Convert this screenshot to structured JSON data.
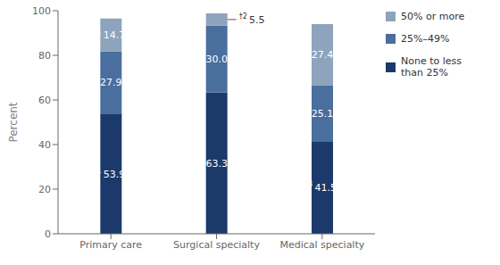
{
  "chart_data": {
    "type": "bar",
    "stacked": true,
    "categories": [
      "Primary care",
      "Surgical specialty",
      "Medical specialty"
    ],
    "ylabel": "Percent",
    "ylim": [
      0,
      100
    ],
    "yticks": [
      0,
      20,
      40,
      60,
      80,
      100
    ],
    "grid": false,
    "data_labels": true,
    "legend": "right",
    "series": [
      {
        "name": "None to less\nthan 25%",
        "color": "#1b3a6b",
        "values": [
          53.9,
          63.3,
          41.5
        ]
      },
      {
        "name": "25%–49%",
        "color": "#4a6e9e",
        "values": [
          27.9,
          30.0,
          25.1
        ],
        "value_labels": [
          "27.9",
          "30.0",
          "25.1"
        ]
      },
      {
        "name": "50% or more",
        "color": "#8da4bc",
        "values": [
          14.7,
          5.5,
          27.4
        ]
      }
    ],
    "annotations": [
      {
        "text": "1",
        "series": "None to less\nthan 25%",
        "category": "Primary care"
      },
      {
        "text": "3",
        "series": "None to less\nthan 25%",
        "category": "Medical specialty"
      },
      {
        "text": "1",
        "series": "50% or more",
        "category": "Primary care"
      },
      {
        "text": "†2",
        "series": "50% or more",
        "category": "Surgical specialty"
      }
    ]
  }
}
